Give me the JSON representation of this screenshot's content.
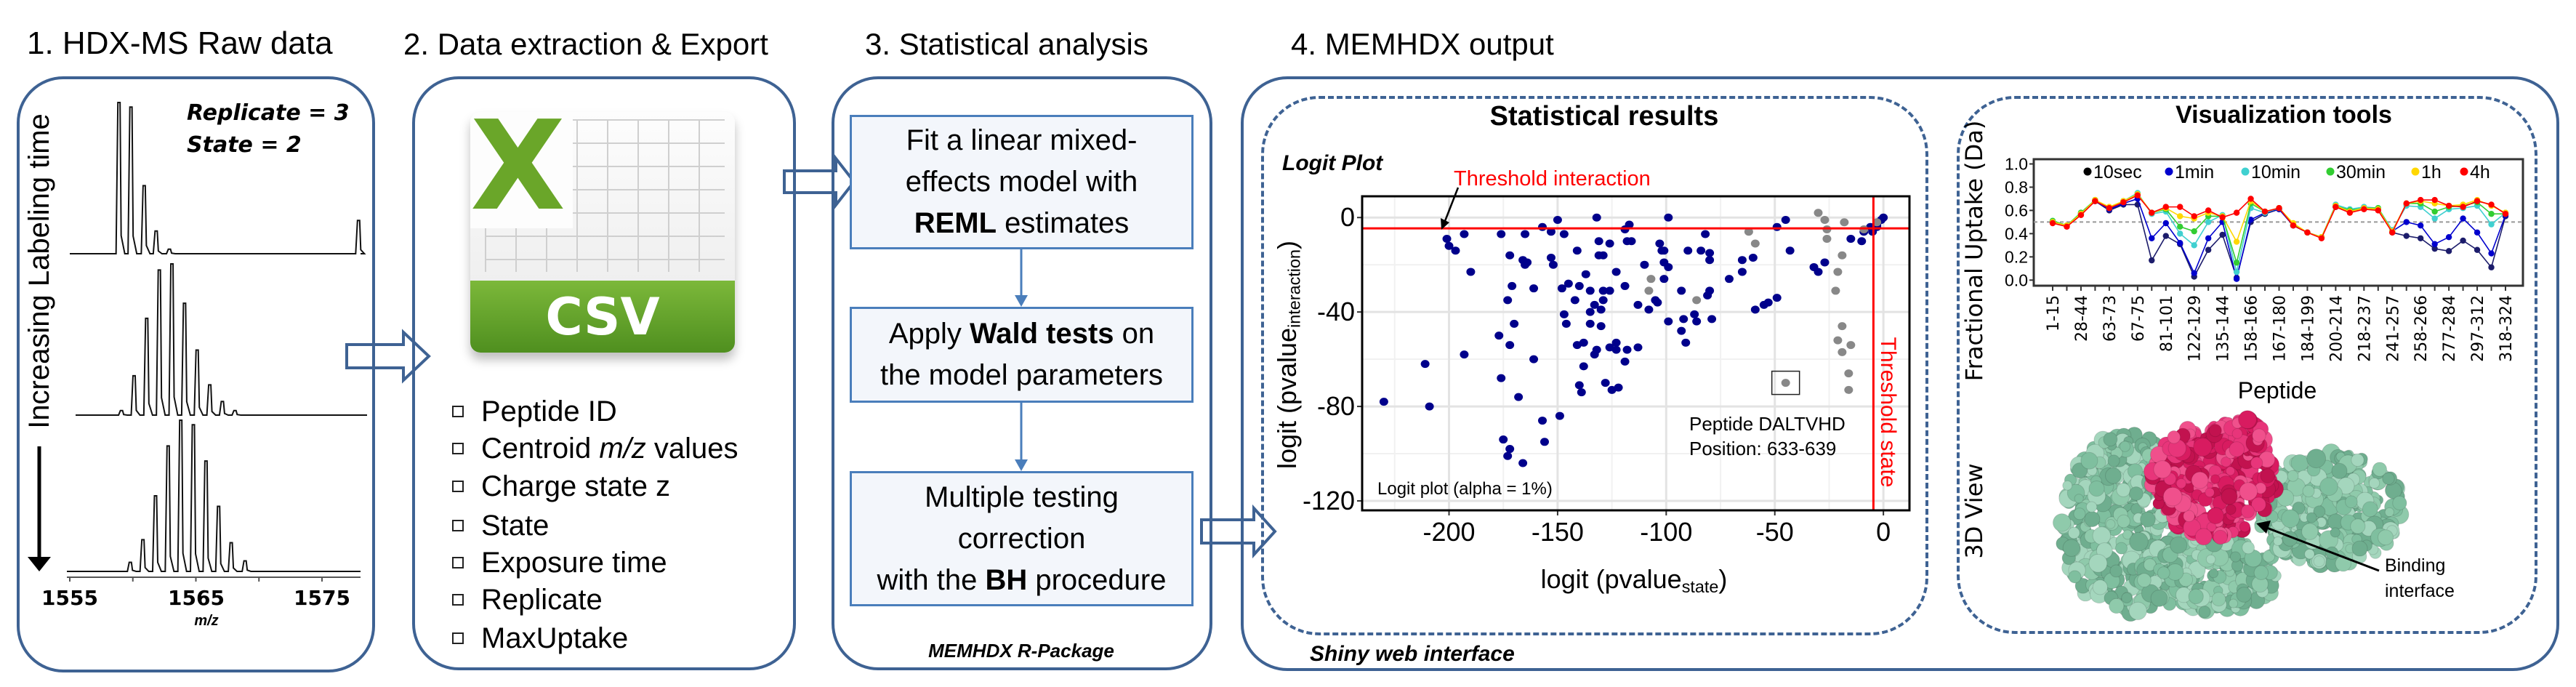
{
  "raw": {
    "title": "1. HDX-MS Raw data",
    "replicate": "Replicate = 3",
    "state": "State = 2",
    "time_label": "Increasing Labeling time",
    "xaxis_ticks": [
      "1555",
      "1565",
      "1575"
    ],
    "xaxis_label": "m/z",
    "spectra": [
      {
        "peaks": [
          [
            1558.9,
            1.0
          ],
          [
            1559.85,
            0.97
          ],
          [
            1560.9,
            0.45
          ],
          [
            1561.85,
            0.15
          ],
          [
            1562.9,
            0.03
          ],
          [
            1577.9,
            0.22
          ]
        ]
      },
      {
        "peaks": [
          [
            1559.1,
            0.03
          ],
          [
            1560.1,
            0.26
          ],
          [
            1561.1,
            0.64
          ],
          [
            1562.1,
            0.96
          ],
          [
            1563.1,
            1.0
          ],
          [
            1564.1,
            0.74
          ],
          [
            1565.1,
            0.43
          ],
          [
            1566.1,
            0.2
          ],
          [
            1567.1,
            0.09
          ],
          [
            1568.1,
            0.03
          ]
        ]
      },
      {
        "peaks": [
          [
            1559.8,
            0.06
          ],
          [
            1560.8,
            0.21
          ],
          [
            1561.8,
            0.5
          ],
          [
            1562.8,
            0.83
          ],
          [
            1563.8,
            1.0
          ],
          [
            1564.8,
            0.97
          ],
          [
            1565.8,
            0.73
          ],
          [
            1566.8,
            0.43
          ],
          [
            1567.8,
            0.19
          ],
          [
            1568.9,
            0.07
          ]
        ]
      }
    ]
  },
  "export": {
    "title": "2. Data extraction & Export",
    "file_icon": "csv-file-icon",
    "file_label": "CSV",
    "fields": [
      {
        "pre": "Peptide ID"
      },
      {
        "pre": "Centroid ",
        "em": "m/z",
        "post": " values"
      },
      {
        "pre": "Charge state z"
      },
      {
        "pre": "State"
      },
      {
        "pre": "Exposure time"
      },
      {
        "pre": "Replicate"
      },
      {
        "pre": "MaxUptake"
      }
    ]
  },
  "stats": {
    "title": "3. Statistical analysis",
    "step1": {
      "line1": "Fit a linear mixed-",
      "line2": "effects model with",
      "bold": "REML",
      "rest": " estimates"
    },
    "step2": {
      "pre": "Apply ",
      "bold": "Wald tests",
      "post": " on",
      "line2": "the model parameters"
    },
    "step3": {
      "line1": "Multiple testing",
      "line2": "correction",
      "pre": "with the ",
      "bold": "BH",
      "post": " procedure"
    },
    "footer": "MEMHDX R-Package"
  },
  "output": {
    "title": "4. MEMHDX output",
    "footer": "Shiny web interface",
    "stat_results_title": "Statistical results",
    "viz_title": "Visualization tools",
    "view3d_label": "3D View",
    "binding_label_1": "Binding",
    "binding_label_2": "interface",
    "colors": {
      "frame": "#3e6293",
      "binding": "#d81b60",
      "protein": "#7fbf9f"
    }
  },
  "chart_data": [
    {
      "type": "scatter",
      "title": "Logit Plot",
      "xlabel": {
        "main": "logit (pvalue",
        "sub": "state",
        "close": ")"
      },
      "ylabel": {
        "main": "logit (pvalue",
        "sub": "interaction",
        "close": ")"
      },
      "xlim": [
        -240,
        12
      ],
      "ylim": [
        -124,
        9
      ],
      "xticks": [
        -200,
        -150,
        -100,
        -50,
        0
      ],
      "yticks": [
        0,
        -40,
        -80,
        -120
      ],
      "grid": true,
      "threshold_interaction": {
        "label": "Threshold interaction",
        "value": -4.6,
        "color": "#ff0000"
      },
      "threshold_state": {
        "label": "Threshold state",
        "value": -4.6,
        "color": "#ff0000"
      },
      "alpha_note": "Logit plot (alpha = 1%)",
      "highlight": {
        "line1": "Peptide DALTVHD",
        "line2": "Position: 633-639",
        "point": [
          -45,
          -70
        ]
      },
      "series": [
        {
          "color": "#00008b",
          "points": [
            [
              -230,
              -78
            ],
            [
              -211,
              -62
            ],
            [
              -209,
              -80
            ],
            [
              -201,
              -9
            ],
            [
              -200,
              -12
            ],
            [
              -197,
              -14
            ],
            [
              -193,
              -7
            ],
            [
              -190,
              -23
            ],
            [
              -193,
              -58
            ],
            [
              -176,
              -7
            ],
            [
              -172,
              -16
            ],
            [
              -171,
              -29
            ],
            [
              -173,
              -35
            ],
            [
              -170,
              -45
            ],
            [
              -177,
              -50
            ],
            [
              -172,
              -54
            ],
            [
              -176,
              -68
            ],
            [
              -175,
              -94
            ],
            [
              -172,
              -98
            ],
            [
              -173,
              -101
            ],
            [
              -168,
              -76
            ],
            [
              -166,
              -104
            ],
            [
              -166,
              -18
            ],
            [
              -165,
              -20
            ],
            [
              -164,
              -19
            ],
            [
              -165,
              -7
            ],
            [
              -161,
              -30
            ],
            [
              -161,
              -60
            ],
            [
              -157,
              -86
            ],
            [
              -156,
              -95
            ],
            [
              -157,
              -4
            ],
            [
              -153,
              -6
            ],
            [
              -150,
              -1
            ],
            [
              -147,
              -7
            ],
            [
              -153,
              -17
            ],
            [
              -152,
              -20
            ],
            [
              -148,
              -30
            ],
            [
              -145,
              -28
            ],
            [
              -142,
              -35
            ],
            [
              -147,
              -41
            ],
            [
              -146,
              -45
            ],
            [
              -149,
              -84
            ],
            [
              -141,
              -14
            ],
            [
              -140,
              -29
            ],
            [
              -137,
              -24
            ],
            [
              -135,
              -31
            ],
            [
              -133,
              -37
            ],
            [
              -135,
              -40
            ],
            [
              -135,
              -45
            ],
            [
              -141,
              -54
            ],
            [
              -138,
              -53
            ],
            [
              -132,
              -56
            ],
            [
              -133,
              -58
            ],
            [
              -138,
              -63
            ],
            [
              -140,
              -71
            ],
            [
              -139,
              -74
            ],
            [
              -132,
              0
            ],
            [
              -131,
              -10
            ],
            [
              -131,
              -16
            ],
            [
              -129,
              -16
            ],
            [
              -126,
              -11
            ],
            [
              -129,
              -31
            ],
            [
              -129,
              -35
            ],
            [
              -130,
              -39
            ],
            [
              -130,
              -46
            ],
            [
              -126,
              -31
            ],
            [
              -123,
              -23
            ],
            [
              -119,
              -29
            ],
            [
              -119,
              -5
            ],
            [
              -117,
              -3
            ],
            [
              -118,
              -10
            ],
            [
              -116,
              -10
            ],
            [
              -113,
              -37
            ],
            [
              -123,
              -53
            ],
            [
              -126,
              -55
            ],
            [
              -123,
              -56
            ],
            [
              -118,
              -56
            ],
            [
              -113,
              -55
            ],
            [
              -119,
              -61
            ],
            [
              -128,
              -70
            ],
            [
              -125,
              -73
            ],
            [
              -122,
              -72
            ],
            [
              -110,
              -20
            ],
            [
              -108,
              -39
            ],
            [
              -105,
              -35
            ],
            [
              -104,
              -36
            ],
            [
              -103,
              -11
            ],
            [
              -102,
              -14
            ],
            [
              -101,
              -14
            ],
            [
              -101,
              -19
            ],
            [
              -99,
              -21
            ],
            [
              -101,
              -26
            ],
            [
              -99,
              0
            ],
            [
              -99,
              -44
            ],
            [
              -93,
              -31
            ],
            [
              -92,
              -43
            ],
            [
              -93,
              -48
            ],
            [
              -91,
              -53
            ],
            [
              -90,
              -14
            ],
            [
              -87,
              -41
            ],
            [
              -86,
              -44
            ],
            [
              -84,
              -14
            ],
            [
              -82,
              -7
            ],
            [
              -80,
              -15
            ],
            [
              -80,
              -18
            ],
            [
              -80,
              -31
            ],
            [
              -81,
              -33
            ],
            [
              -79,
              -43
            ],
            [
              -71,
              -26
            ],
            [
              -65,
              -23
            ],
            [
              -65,
              -18
            ],
            [
              -60,
              -17
            ],
            [
              -59,
              -39
            ],
            [
              -55,
              -37
            ],
            [
              -53,
              -36
            ],
            [
              -49,
              -34
            ],
            [
              -49,
              -4
            ],
            [
              -45,
              -1
            ],
            [
              -43,
              -14
            ],
            [
              -32,
              -21
            ],
            [
              -30,
              -23
            ],
            [
              -27,
              -19
            ],
            [
              -15,
              -9
            ],
            [
              -10,
              -10
            ],
            [
              -9,
              -6
            ],
            [
              -6,
              -4
            ],
            [
              -5,
              -6
            ],
            [
              -3,
              -4
            ],
            [
              -3,
              -3
            ],
            [
              0,
              0
            ],
            [
              -1,
              -1
            ]
          ]
        },
        {
          "color": "#888888",
          "points": [
            [
              -62,
              -6
            ],
            [
              -59,
              -11
            ],
            [
              -30,
              2
            ],
            [
              -27,
              -1
            ],
            [
              -26,
              -5
            ],
            [
              -26,
              -9
            ],
            [
              -18,
              -2
            ],
            [
              -19,
              -16
            ],
            [
              -21,
              -23
            ],
            [
              -22,
              -31
            ],
            [
              -19,
              -46
            ],
            [
              -21,
              -52
            ],
            [
              -15,
              -54
            ],
            [
              -19,
              -57
            ],
            [
              -16,
              -66
            ],
            [
              -16,
              -73
            ],
            [
              -107,
              -26
            ],
            [
              -108,
              -31
            ],
            [
              -86,
              -35
            ],
            [
              -3,
              -2
            ],
            [
              -9,
              -5
            ],
            [
              -45,
              -70
            ]
          ]
        }
      ]
    },
    {
      "type": "line",
      "ylabel": "Fractional Uptake (Da)",
      "xlabel": "Peptide",
      "ylim": [
        0,
        1
      ],
      "yticks": [
        "0.0",
        "0.2",
        "0.4",
        "0.6",
        "0.8",
        "1.0"
      ],
      "reference_line": 0.5,
      "legend_position": "top",
      "x_tick_labels": [
        "1-15",
        "28-44",
        "63-73",
        "67-75",
        "81-101",
        "122-129",
        "135-144",
        "158-166",
        "167-180",
        "184-199",
        "200-214",
        "218-237",
        "241-257",
        "258-266",
        "277-284",
        "297-312",
        "318-324"
      ],
      "series": [
        {
          "name": "10sec",
          "color": "#1c1c6b",
          "legend_color": "#000000",
          "values": [
            0.5,
            0.47,
            0.57,
            0.68,
            0.6,
            0.65,
            0.65,
            0.17,
            0.38,
            0.31,
            0.03,
            0.26,
            0.39,
            0.02,
            0.5,
            0.57,
            0.61,
            0.47,
            0.41,
            0.37,
            0.63,
            0.59,
            0.62,
            0.61,
            0.41,
            0.38,
            0.36,
            0.27,
            0.25,
            0.34,
            0.26,
            0.11,
            0.55
          ]
        },
        {
          "name": "1min",
          "color": "#0000cd",
          "legend_color": "#0000cd",
          "values": [
            0.5,
            0.47,
            0.57,
            0.68,
            0.61,
            0.66,
            0.7,
            0.36,
            0.49,
            0.32,
            0.06,
            0.36,
            0.5,
            0.01,
            0.52,
            0.58,
            0.61,
            0.47,
            0.41,
            0.37,
            0.63,
            0.59,
            0.62,
            0.61,
            0.42,
            0.5,
            0.47,
            0.31,
            0.37,
            0.53,
            0.41,
            0.23,
            0.56
          ]
        },
        {
          "name": "10min",
          "color": "#40d0d0",
          "legend_color": "#40d0d0",
          "values": [
            0.51,
            0.47,
            0.58,
            0.69,
            0.62,
            0.68,
            0.75,
            0.57,
            0.59,
            0.4,
            0.3,
            0.5,
            0.56,
            0.07,
            0.62,
            0.58,
            0.62,
            0.48,
            0.41,
            0.37,
            0.65,
            0.61,
            0.63,
            0.62,
            0.43,
            0.64,
            0.63,
            0.53,
            0.61,
            0.62,
            0.64,
            0.48,
            0.58
          ]
        },
        {
          "name": "30min",
          "color": "#32cd32",
          "legend_color": "#32cd32",
          "values": [
            0.51,
            0.47,
            0.58,
            0.69,
            0.62,
            0.68,
            0.74,
            0.58,
            0.61,
            0.46,
            0.42,
            0.55,
            0.55,
            0.15,
            0.66,
            0.59,
            0.62,
            0.48,
            0.41,
            0.37,
            0.64,
            0.6,
            0.62,
            0.62,
            0.42,
            0.66,
            0.66,
            0.59,
            0.63,
            0.64,
            0.67,
            0.57,
            0.57
          ]
        },
        {
          "name": "1h",
          "color": "#ffd700",
          "legend_color": "#ffd700",
          "values": [
            0.5,
            0.47,
            0.57,
            0.69,
            0.63,
            0.68,
            0.74,
            0.58,
            0.62,
            0.55,
            0.53,
            0.58,
            0.55,
            0.33,
            0.68,
            0.59,
            0.62,
            0.49,
            0.41,
            0.37,
            0.64,
            0.59,
            0.62,
            0.61,
            0.42,
            0.66,
            0.68,
            0.66,
            0.64,
            0.65,
            0.69,
            0.64,
            0.58
          ]
        },
        {
          "name": "4h",
          "color": "#ff0000",
          "legend_color": "#ff0000",
          "values": [
            0.49,
            0.46,
            0.56,
            0.68,
            0.62,
            0.67,
            0.73,
            0.58,
            0.63,
            0.63,
            0.55,
            0.6,
            0.54,
            0.58,
            0.7,
            0.59,
            0.62,
            0.47,
            0.41,
            0.36,
            0.63,
            0.58,
            0.61,
            0.6,
            0.41,
            0.66,
            0.69,
            0.69,
            0.64,
            0.63,
            0.68,
            0.65,
            0.57
          ]
        }
      ]
    }
  ]
}
